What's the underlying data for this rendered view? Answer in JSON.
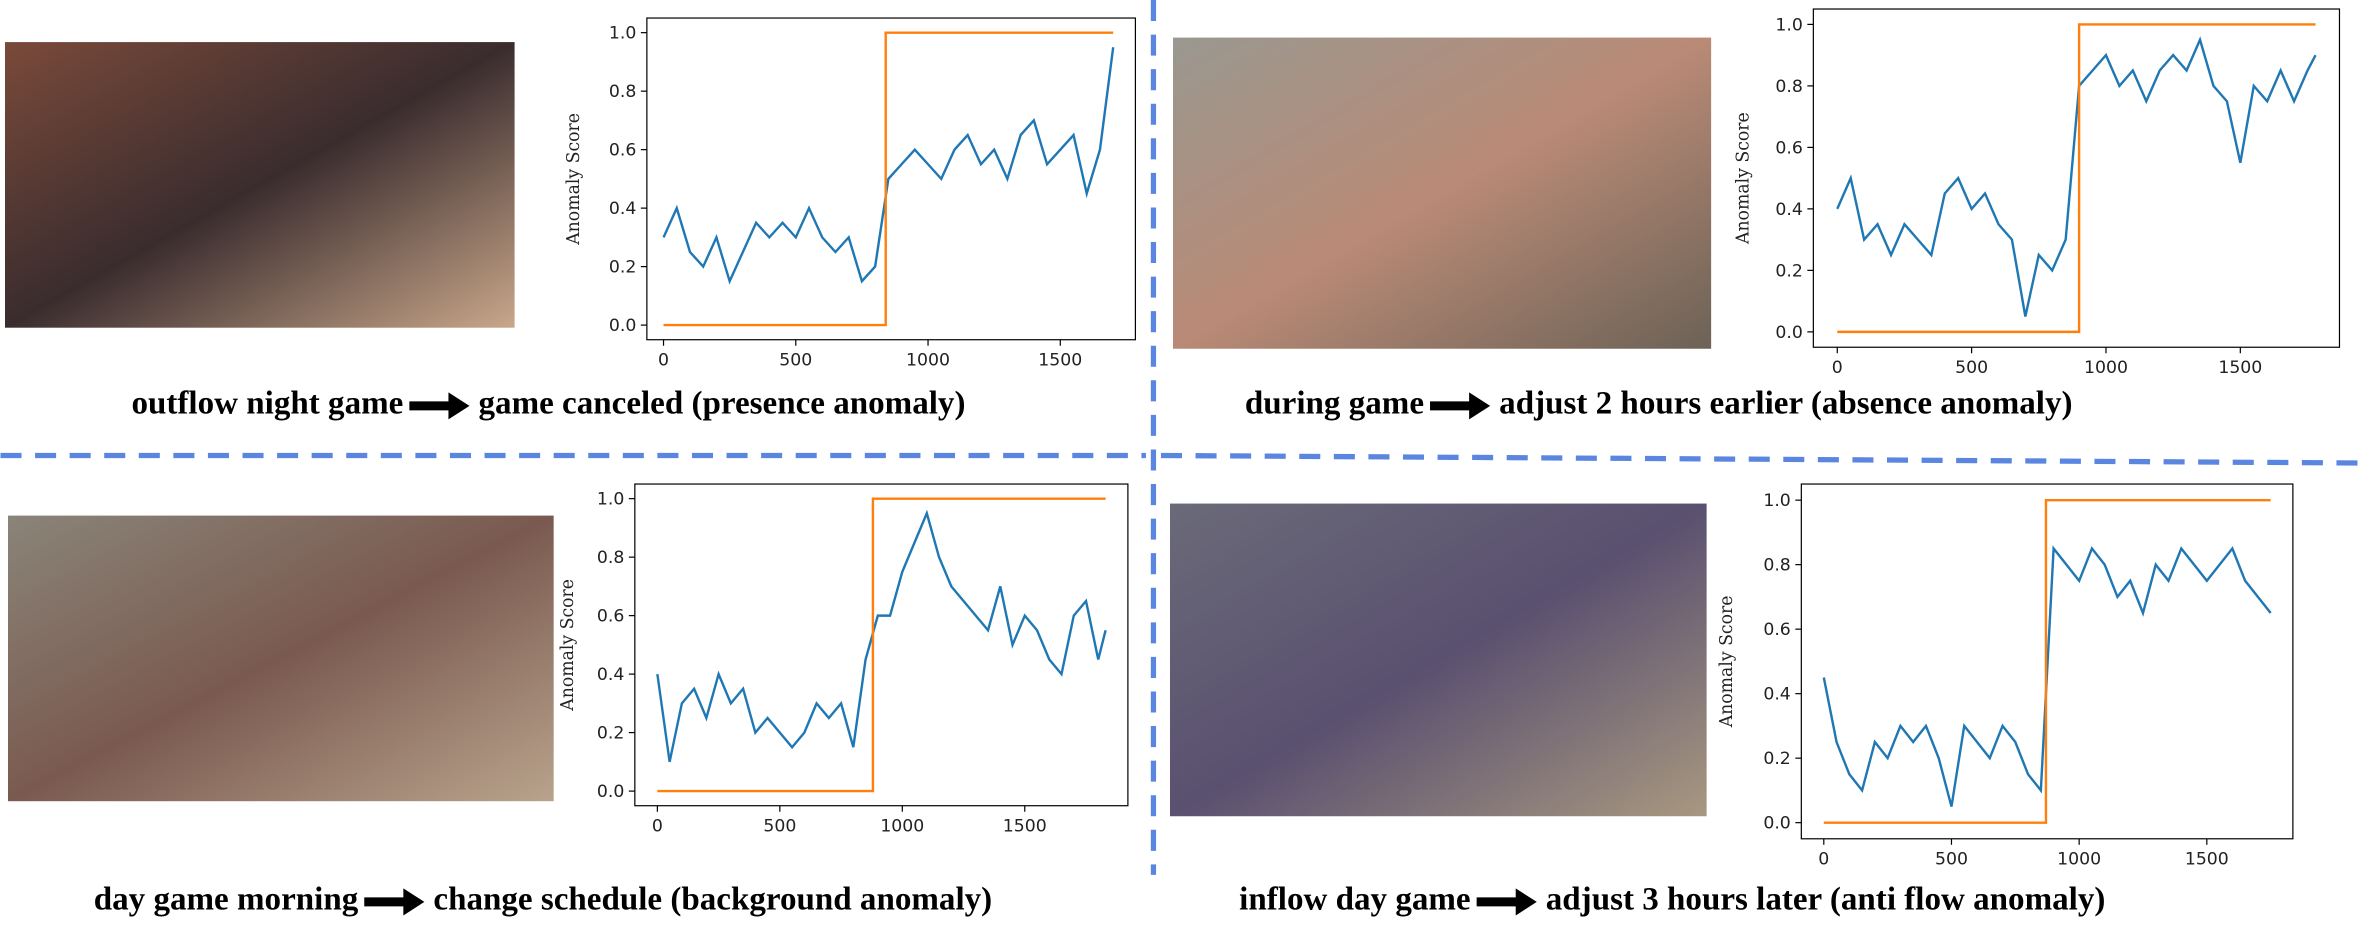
{
  "chart_data": [
    {
      "type": "line",
      "ylabel": "Anomaly Score",
      "caption": [
        "outflow night game",
        "game canceled (presence anomaly)"
      ],
      "xlim": [
        -63,
        1784
      ],
      "ylim": [
        -0.05,
        1.05
      ],
      "xticks": [
        0,
        500,
        1000,
        1500
      ],
      "yticks": [
        {
          "value": 0,
          "label": "0.0"
        },
        0.2,
        0.4,
        0.6,
        {
          "value": 0.8,
          "label": "0.8"
        },
        {
          "value": 1,
          "label": "1.0"
        }
      ],
      "series": [
        {
          "color": "#1f77b4",
          "x": [
            0,
            50,
            100,
            150,
            200,
            250,
            300,
            350,
            400,
            450,
            500,
            550,
            600,
            650,
            700,
            750,
            800,
            850,
            900,
            950,
            1000,
            1050,
            1100,
            1150,
            1200,
            1250,
            1300,
            1350,
            1400,
            1450,
            1500,
            1550,
            1600,
            1650,
            1700
          ],
          "values": [
            0.3,
            0.4,
            0.25,
            0.2,
            0.3,
            0.15,
            0.25,
            0.35,
            0.3,
            0.35,
            0.3,
            0.4,
            0.3,
            0.25,
            0.3,
            0.15,
            0.2,
            0.5,
            0.55,
            0.6,
            0.55,
            0.5,
            0.6,
            0.65,
            0.55,
            0.6,
            0.5,
            0.65,
            0.7,
            0.55,
            0.6,
            0.65,
            0.45,
            0.6,
            0.95
          ]
        },
        {
          "color": "#ff7f0e",
          "x": [
            0,
            840,
            840,
            1700
          ],
          "values": [
            0,
            0,
            1,
            1
          ]
        }
      ]
    },
    {
      "type": "line",
      "ylabel": "Anomaly Score",
      "caption": [
        "during game",
        "adjust 2 hours earlier (absence anomaly)"
      ],
      "xlim": [
        -89,
        1869
      ],
      "ylim": [
        -0.05,
        1.05
      ],
      "xticks": [
        0,
        500,
        1000,
        1500
      ],
      "yticks": [
        {
          "value": 0,
          "label": "0.0"
        },
        0.2,
        0.4,
        0.6,
        {
          "value": 0.8,
          "label": "0.8"
        },
        {
          "value": 1,
          "label": "1.0"
        }
      ],
      "series": [
        {
          "color": "#1f77b4",
          "x": [
            0,
            50,
            100,
            150,
            200,
            250,
            300,
            350,
            400,
            450,
            500,
            550,
            600,
            650,
            700,
            750,
            800,
            850,
            900,
            950,
            1000,
            1050,
            1100,
            1150,
            1200,
            1250,
            1300,
            1350,
            1400,
            1450,
            1500,
            1550,
            1600,
            1650,
            1700,
            1750,
            1780
          ],
          "values": [
            0.4,
            0.5,
            0.3,
            0.35,
            0.25,
            0.35,
            0.3,
            0.25,
            0.45,
            0.5,
            0.4,
            0.45,
            0.35,
            0.3,
            0.05,
            0.25,
            0.2,
            0.3,
            0.8,
            0.85,
            0.9,
            0.8,
            0.85,
            0.75,
            0.85,
            0.9,
            0.85,
            0.95,
            0.8,
            0.75,
            0.55,
            0.8,
            0.75,
            0.85,
            0.75,
            0.85,
            0.9
          ]
        },
        {
          "color": "#ff7f0e",
          "x": [
            0,
            900,
            900,
            1780
          ],
          "values": [
            0,
            0,
            1,
            1
          ]
        }
      ]
    },
    {
      "type": "line",
      "ylabel": "Anomaly Score",
      "caption": [
        "day game morning",
        "change schedule (background anomaly)"
      ],
      "xlim": [
        -92,
        1921
      ],
      "ylim": [
        -0.05,
        1.05
      ],
      "xticks": [
        0,
        500,
        1000,
        1500
      ],
      "yticks": [
        {
          "value": 0,
          "label": "0.0"
        },
        0.2,
        0.4,
        0.6,
        {
          "value": 0.8,
          "label": "0.8"
        },
        {
          "value": 1,
          "label": "1.0"
        }
      ],
      "series": [
        {
          "color": "#1f77b4",
          "x": [
            0,
            50,
            100,
            150,
            200,
            250,
            300,
            350,
            400,
            450,
            500,
            550,
            600,
            650,
            700,
            750,
            800,
            850,
            900,
            950,
            1000,
            1050,
            1100,
            1150,
            1200,
            1250,
            1300,
            1350,
            1400,
            1450,
            1500,
            1550,
            1600,
            1650,
            1700,
            1750,
            1800,
            1830
          ],
          "values": [
            0.4,
            0.1,
            0.3,
            0.35,
            0.25,
            0.4,
            0.3,
            0.35,
            0.2,
            0.25,
            0.2,
            0.15,
            0.2,
            0.3,
            0.25,
            0.3,
            0.15,
            0.45,
            0.6,
            0.6,
            0.75,
            0.85,
            0.95,
            0.8,
            0.7,
            0.65,
            0.6,
            0.55,
            0.7,
            0.5,
            0.6,
            0.55,
            0.45,
            0.4,
            0.6,
            0.65,
            0.45,
            0.55
          ]
        },
        {
          "color": "#ff7f0e",
          "x": [
            0,
            880,
            880,
            1830
          ],
          "values": [
            0,
            0,
            1,
            1
          ]
        }
      ]
    },
    {
      "type": "line",
      "ylabel": "Anomaly Score",
      "caption": [
        "inflow day game",
        "adjust 3 hours later (anti flow anomaly)"
      ],
      "xlim": [
        -88,
        1837
      ],
      "ylim": [
        -0.05,
        1.05
      ],
      "xticks": [
        0,
        500,
        1000,
        1500
      ],
      "yticks": [
        {
          "value": 0,
          "label": "0.0"
        },
        0.2,
        0.4,
        0.6,
        {
          "value": 0.8,
          "label": "0.8"
        },
        {
          "value": 1,
          "label": "1.0"
        }
      ],
      "series": [
        {
          "color": "#1f77b4",
          "x": [
            0,
            50,
            100,
            150,
            200,
            250,
            300,
            350,
            400,
            450,
            500,
            550,
            600,
            650,
            700,
            750,
            800,
            850,
            900,
            950,
            1000,
            1050,
            1100,
            1150,
            1200,
            1250,
            1300,
            1350,
            1400,
            1450,
            1500,
            1550,
            1600,
            1650,
            1700,
            1750
          ],
          "values": [
            0.45,
            0.25,
            0.15,
            0.1,
            0.25,
            0.2,
            0.3,
            0.25,
            0.3,
            0.2,
            0.05,
            0.3,
            0.25,
            0.2,
            0.3,
            0.25,
            0.15,
            0.1,
            0.85,
            0.8,
            0.75,
            0.85,
            0.8,
            0.7,
            0.75,
            0.65,
            0.8,
            0.75,
            0.85,
            0.8,
            0.75,
            0.8,
            0.85,
            0.75,
            0.7,
            0.65
          ]
        },
        {
          "color": "#ff7f0e",
          "x": [
            0,
            870,
            870,
            1750
          ],
          "values": [
            0,
            0,
            1,
            1
          ]
        }
      ]
    }
  ]
}
